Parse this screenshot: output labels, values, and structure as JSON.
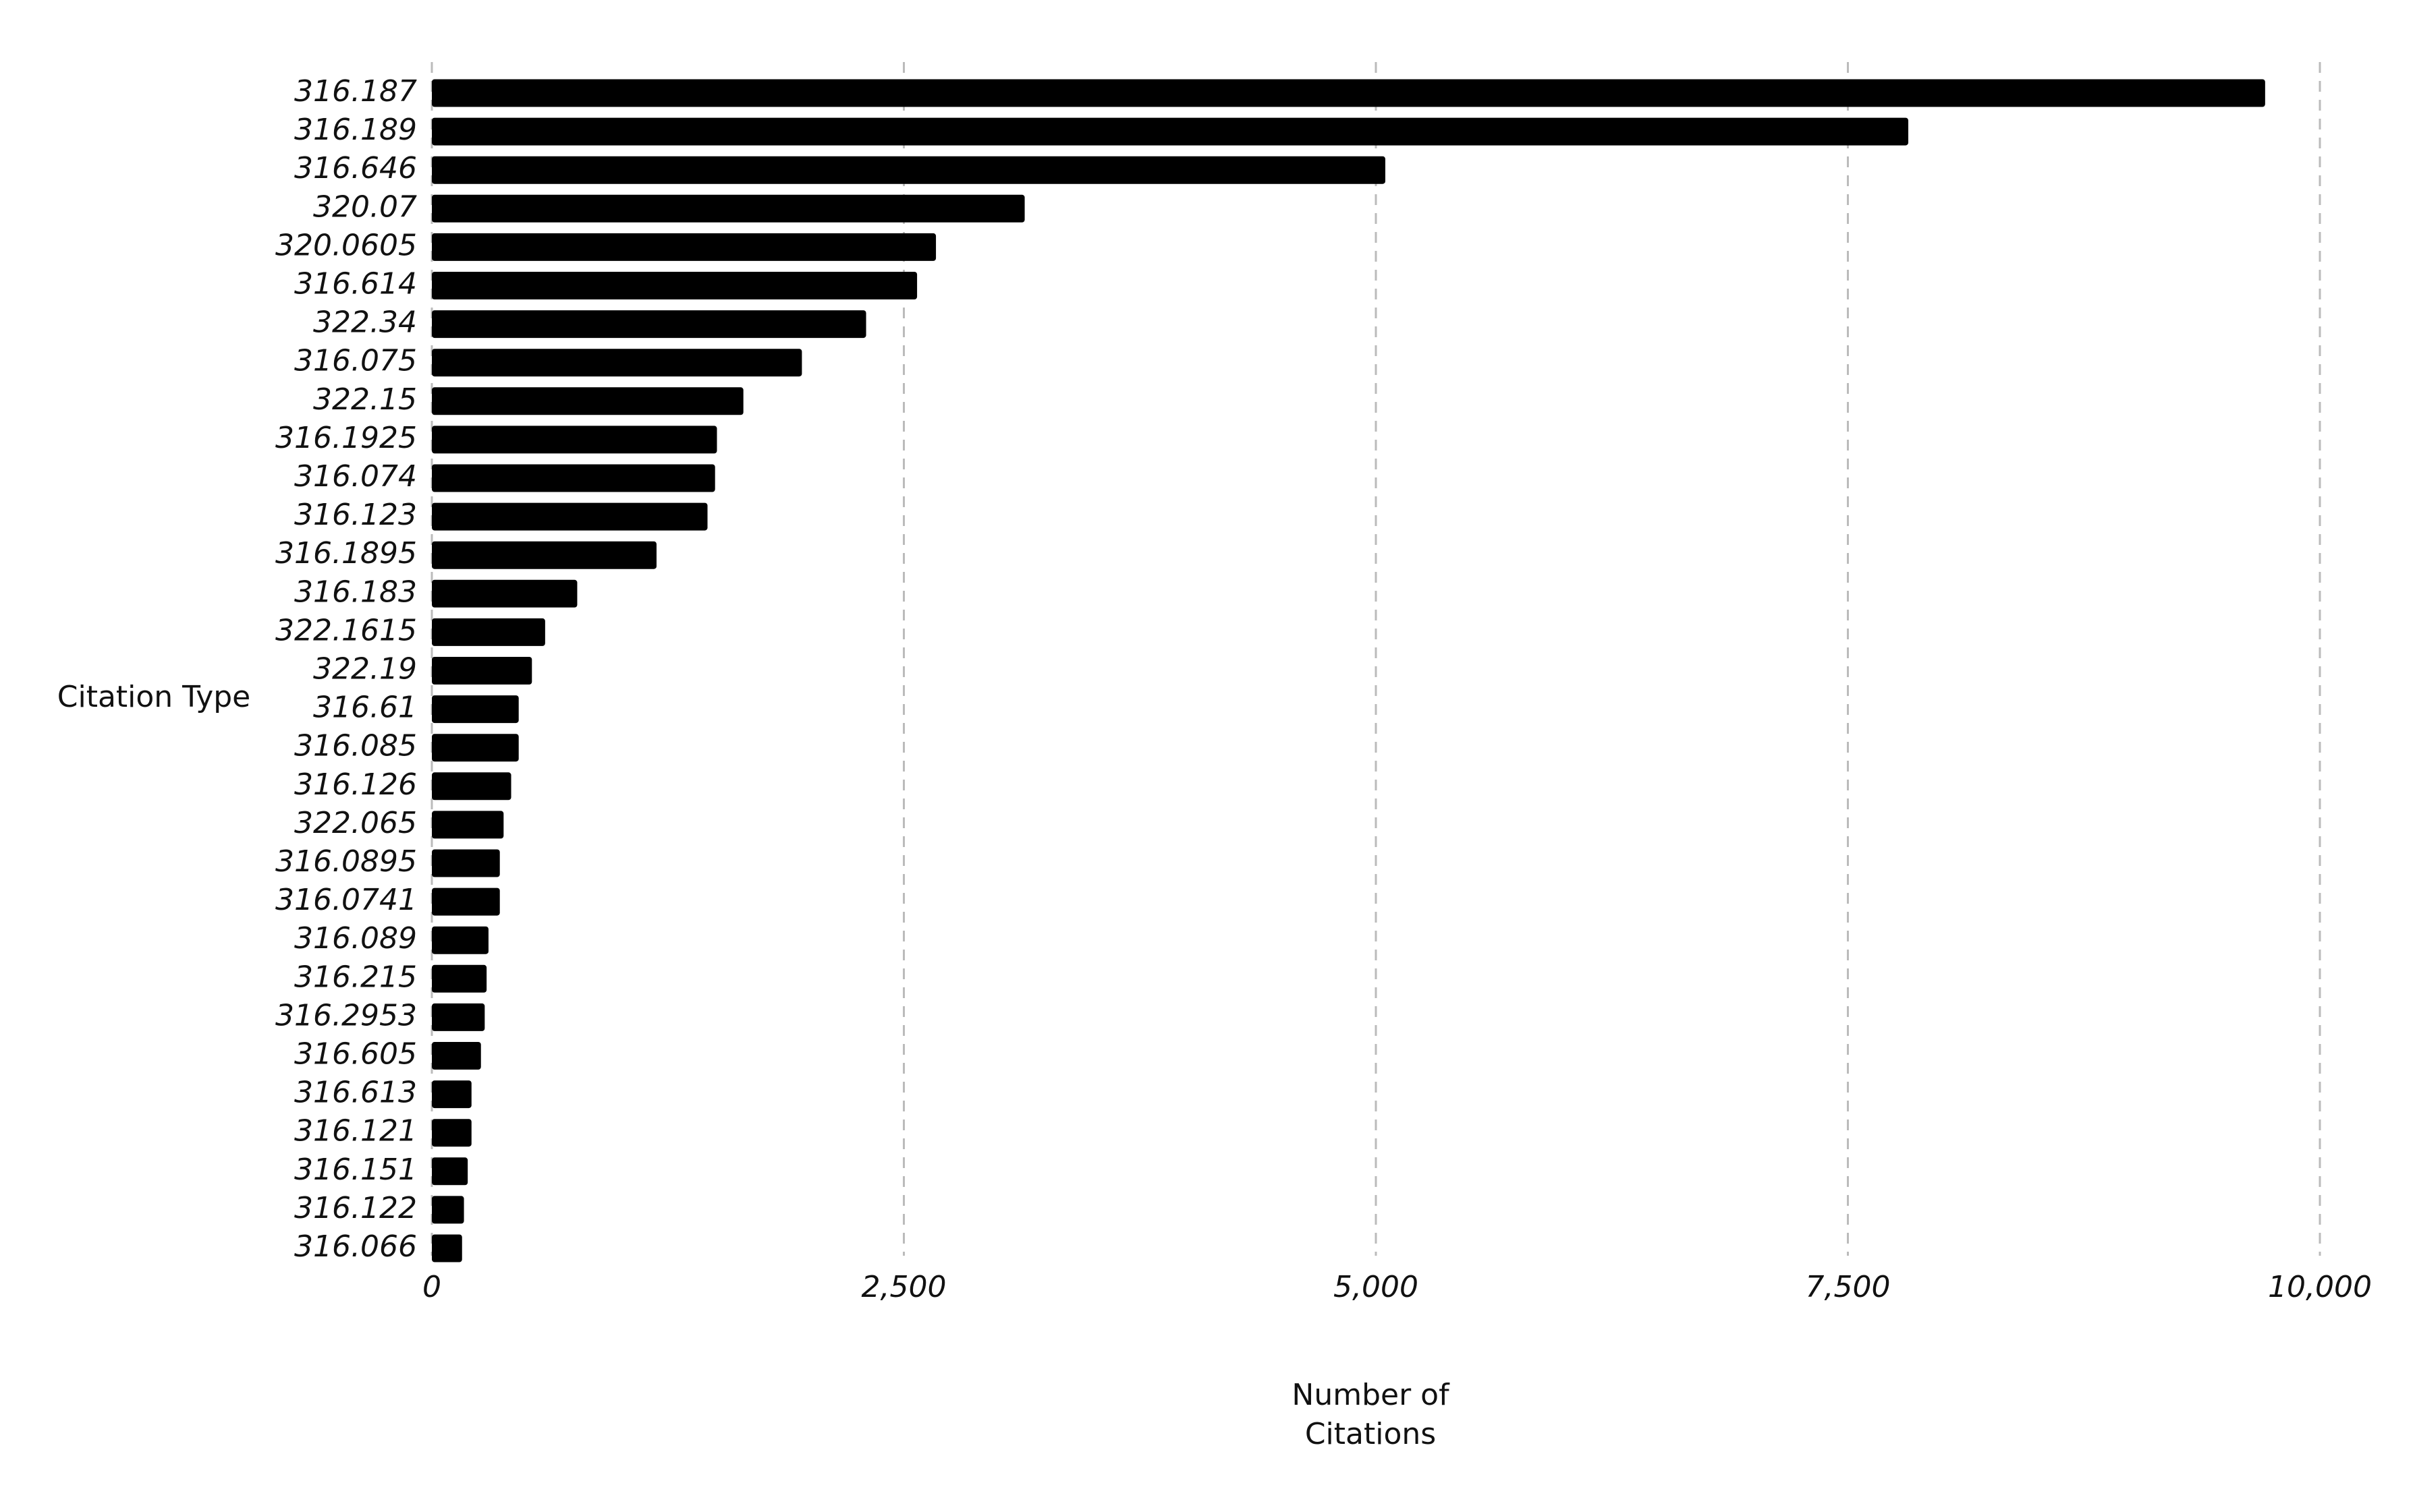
{
  "chart_data": {
    "type": "bar",
    "orientation": "horizontal",
    "y_label": "Citation Type",
    "x_label": "Number of Citations",
    "categories": [
      "316.187",
      "316.189",
      "316.646",
      "320.07",
      "320.0605",
      "316.614",
      "322.34",
      "316.075",
      "322.15",
      "316.1925",
      "316.074",
      "316.123",
      "316.1895",
      "316.183",
      "322.1615",
      "322.19",
      "316.61",
      "316.085",
      "316.126",
      "322.065",
      "316.0895",
      "316.0741",
      "316.089",
      "316.215",
      "316.2953",
      "316.605",
      "316.613",
      "316.121",
      "316.151",
      "316.122",
      "316.066"
    ],
    "values": [
      9710,
      7820,
      5050,
      3140,
      2670,
      2570,
      2300,
      1960,
      1650,
      1510,
      1500,
      1460,
      1190,
      770,
      600,
      530,
      460,
      460,
      420,
      380,
      360,
      360,
      300,
      290,
      280,
      260,
      210,
      210,
      190,
      170,
      160
    ],
    "color": "#000000",
    "xlim": [
      0,
      10000
    ],
    "xticks": [
      0,
      {
        "value": 2500,
        "label": "2,500"
      },
      {
        "value": 5000,
        "label": "5,000"
      },
      {
        "value": 7500,
        "label": "7,500"
      },
      {
        "value": 10000,
        "label": "10,000"
      }
    ],
    "grid": true
  }
}
